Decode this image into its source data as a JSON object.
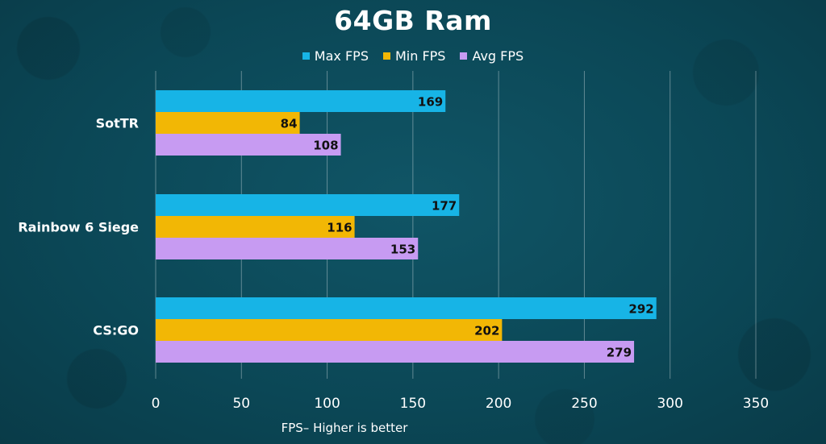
{
  "chart_data": {
    "type": "bar",
    "orientation": "horizontal",
    "title": "64GB Ram",
    "xlabel": "FPS– Higher is better",
    "ylabel": "",
    "categories": [
      "SotTR",
      "Rainbow 6 Siege",
      "CS:GO"
    ],
    "series": [
      {
        "name": "Max FPS",
        "color": "#17b4e6",
        "values": [
          169,
          177,
          292
        ]
      },
      {
        "name": "Min FPS",
        "color": "#f2b705",
        "values": [
          84,
          116,
          202
        ]
      },
      {
        "name": "Avg FPS",
        "color": "#c79bf2",
        "values": [
          108,
          153,
          279
        ]
      }
    ],
    "xlim": [
      0,
      350
    ],
    "ticks": [
      0,
      50,
      100,
      150,
      200,
      250,
      300,
      350
    ],
    "grid": true,
    "legend_position": "top-center"
  }
}
